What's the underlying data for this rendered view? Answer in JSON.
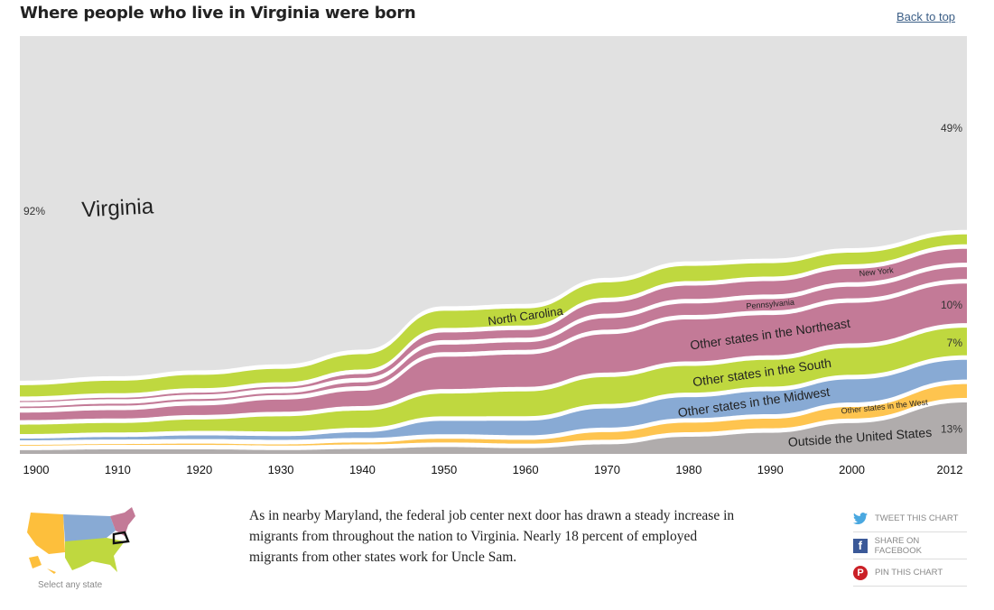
{
  "header": {
    "title": "Where people who live in Virginia were born",
    "back_to_top": "Back to top"
  },
  "chart_data": {
    "type": "area",
    "title": "Where people who live in Virginia were born",
    "x": [
      1900,
      1910,
      1920,
      1930,
      1940,
      1950,
      1960,
      1970,
      1980,
      1990,
      2000,
      2012
    ],
    "x_tick_labels": [
      "1900",
      "1910",
      "1920",
      "1930",
      "1940",
      "1950",
      "1960",
      "1970",
      "1980",
      "1990",
      "2000",
      "2012"
    ],
    "ylim": [
      0,
      100
    ],
    "grid": true,
    "series": [
      {
        "name": "Outside the United States",
        "color": "#b0acac",
        "values": [
          1.0,
          1.2,
          1.2,
          1.0,
          1.3,
          1.8,
          1.5,
          2.5,
          4.5,
          5.5,
          8.0,
          13.0
        ]
      },
      {
        "name": "Other states in the West",
        "color": "#fec44f",
        "values": [
          0.2,
          0.2,
          0.3,
          0.3,
          0.5,
          1.0,
          1.0,
          2.0,
          2.5,
          2.5,
          3.0,
          3.5
        ]
      },
      {
        "name": "Other states in the Midwest",
        "color": "#88aad4",
        "values": [
          0.5,
          0.7,
          1.0,
          1.0,
          1.5,
          3.5,
          3.8,
          5.0,
          5.5,
          6.0,
          6.0,
          5.0
        ]
      },
      {
        "name": "Other states in the South",
        "color": "#bfd83f",
        "values": [
          2.5,
          2.5,
          3.0,
          4.0,
          4.5,
          6.0,
          6.5,
          7.0,
          7.0,
          7.0,
          7.0,
          7.0
        ]
      },
      {
        "name": "Other states in the Northeast",
        "color": "#c37a97",
        "values": [
          2.0,
          2.2,
          2.5,
          3.2,
          4.0,
          8.5,
          8.5,
          10.0,
          11.0,
          10.5,
          10.5,
          10.0
        ]
      },
      {
        "name": "Pennsylvania",
        "color": "#c37a97",
        "values": [
          0.4,
          0.5,
          0.5,
          0.5,
          1.0,
          2.0,
          2.0,
          3.0,
          3.0,
          3.0,
          3.0,
          3.0
        ]
      },
      {
        "name": "New York",
        "color": "#c37a97",
        "values": [
          0.3,
          0.4,
          0.5,
          0.5,
          1.0,
          2.0,
          2.0,
          3.0,
          3.5,
          3.5,
          3.5,
          3.5
        ]
      },
      {
        "name": "North Carolina",
        "color": "#bfd83f",
        "values": [
          3.0,
          3.3,
          3.5,
          3.5,
          4.0,
          4.5,
          4.5,
          4.0,
          4.0,
          3.5,
          3.0,
          2.5
        ]
      },
      {
        "name": "Virginia",
        "color": "#e1e1e1",
        "values": [
          92,
          90,
          88,
          86,
          82,
          71,
          70,
          63,
          59,
          58,
          55,
          49
        ]
      }
    ],
    "annotations": [
      {
        "text": "92%",
        "x": 1900,
        "series": "Virginia"
      },
      {
        "text": "49%",
        "x": 2012,
        "series": "Virginia"
      },
      {
        "text": "10%",
        "x": 2012,
        "series": "Other states in the Northeast"
      },
      {
        "text": "7%",
        "x": 2012,
        "series": "Other states in the South"
      },
      {
        "text": "13%",
        "x": 2012,
        "series": "Outside the United States"
      }
    ],
    "band_labels": [
      {
        "text": "Virginia",
        "series": "Virginia",
        "x": 1910
      },
      {
        "text": "North Carolina",
        "series": "North Carolina",
        "x": 1960
      },
      {
        "text": "New York",
        "series": "New York",
        "x": 2003
      },
      {
        "text": "Pennsylvania",
        "series": "Pennsylvania",
        "x": 1990
      },
      {
        "text": "Other states in the Northeast",
        "series": "Other states in the Northeast",
        "x": 1990
      },
      {
        "text": "Other states in the South",
        "series": "Other states in the South",
        "x": 1989
      },
      {
        "text": "Other states in the Midwest",
        "series": "Other states in the Midwest",
        "x": 1988
      },
      {
        "text": "Other states in the West",
        "series": "Other states in the West",
        "x": 2004
      },
      {
        "text": "Outside the United States",
        "series": "Outside the United States",
        "x": 2001
      }
    ]
  },
  "map": {
    "label": "Select any state",
    "selected_state": "Virginia",
    "region_colors": {
      "west": "#fdbf3c",
      "midwest": "#88aad4",
      "south": "#bfd83f",
      "northeast": "#c37a97"
    }
  },
  "description": "As in nearby Maryland, the federal job center next door has drawn a steady increase in migrants from throughout the nation to Virginia. Nearly 18 percent of employed migrants from other states work for Uncle Sam.",
  "share": [
    {
      "label": "TWEET THIS CHART",
      "icon": "twitter-icon",
      "color": "#4aa8e0"
    },
    {
      "label": "SHARE ON FACEBOOK",
      "icon": "facebook-icon",
      "color": "#3b5998"
    },
    {
      "label": "PIN THIS CHART",
      "icon": "pinterest-icon",
      "color": "#cb2027"
    }
  ]
}
